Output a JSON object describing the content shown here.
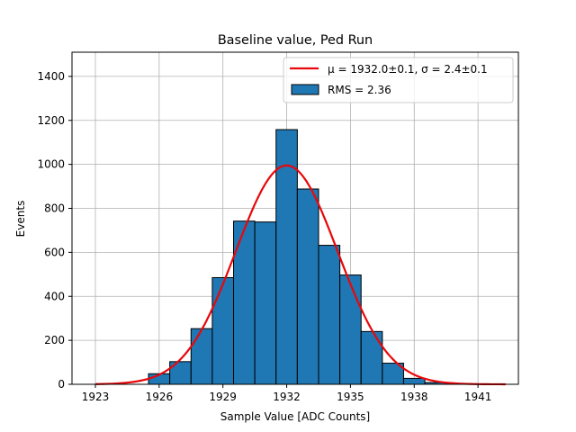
{
  "chart_data": {
    "type": "bar",
    "title": "Baseline value, Ped Run",
    "xlabel": "Sample Value [ADC Counts]",
    "ylabel": "Events",
    "xlim": [
      1921.9,
      1942.9
    ],
    "ylim": [
      0,
      1510
    ],
    "xticks": [
      1923,
      1926,
      1929,
      1932,
      1935,
      1938,
      1941
    ],
    "yticks": [
      0,
      200,
      400,
      600,
      800,
      1000,
      1200,
      1400
    ],
    "grid": true,
    "legend_position": "top-right",
    "bin_width": 1,
    "bins": [
      {
        "center": 1926,
        "value": 48
      },
      {
        "center": 1927,
        "value": 103
      },
      {
        "center": 1928,
        "value": 253
      },
      {
        "center": 1929,
        "value": 485
      },
      {
        "center": 1930,
        "value": 742
      },
      {
        "center": 1931,
        "value": 738
      },
      {
        "center": 1932,
        "value": 1158
      },
      {
        "center": 1933,
        "value": 888
      },
      {
        "center": 1934,
        "value": 632
      },
      {
        "center": 1935,
        "value": 497
      },
      {
        "center": 1936,
        "value": 240
      },
      {
        "center": 1937,
        "value": 96
      },
      {
        "center": 1938,
        "value": 27
      },
      {
        "center": 1939,
        "value": 8
      },
      {
        "center": 1940,
        "value": 2
      }
    ],
    "fit": {
      "type": "gaussian",
      "mu": 1932.0,
      "sigma": 2.4,
      "amplitude": 995,
      "x_range": [
        1923,
        1942.3
      ]
    },
    "legend": {
      "fit_label": "μ = 1932.0±0.1, σ = 2.4±0.1",
      "hist_label": "RMS = 2.36"
    },
    "colors": {
      "bar_fill": "#1f77b4",
      "bar_edge": "#000000",
      "fit_line": "#e8070a",
      "grid": "#b0b0b0"
    }
  }
}
